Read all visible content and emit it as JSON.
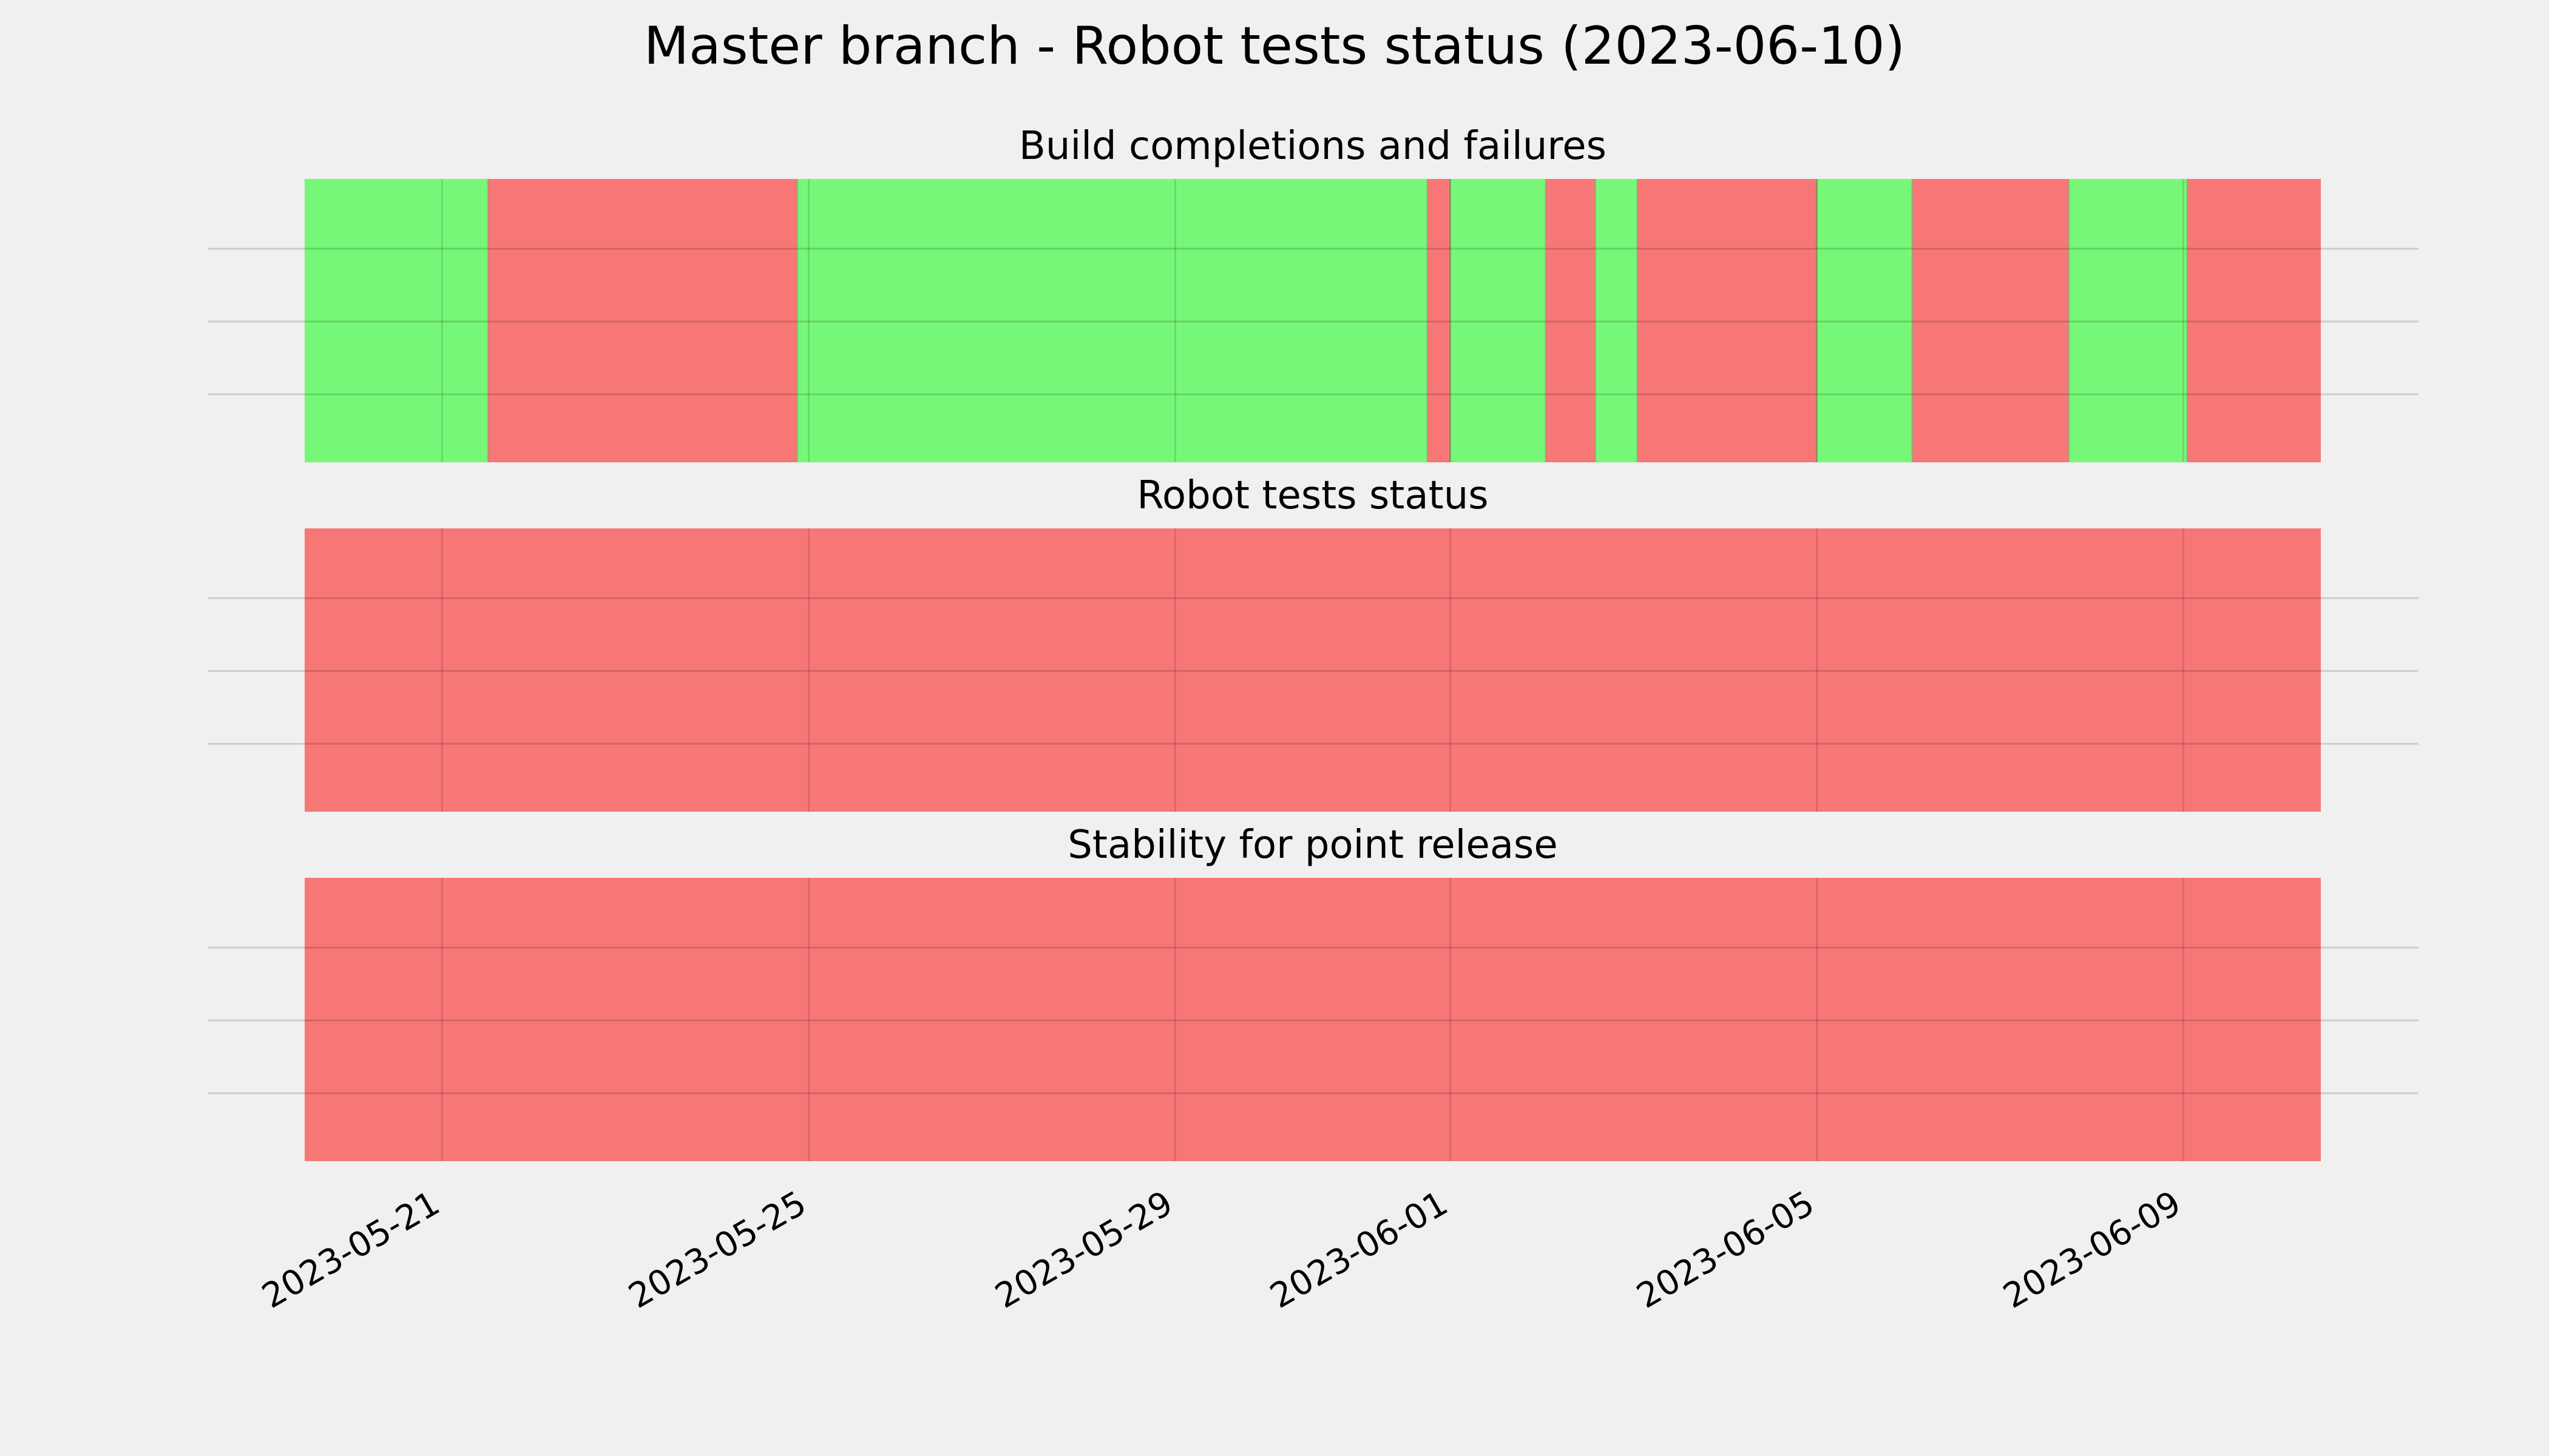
{
  "chart_data": {
    "type": "timeline",
    "title": "Master branch - Robot tests status (2023-06-10)",
    "date_range": [
      "2023-05-19 12:00",
      "2023-06-10 12:00"
    ],
    "xticks": [
      "2023-05-21",
      "2023-05-25",
      "2023-05-29",
      "2023-06-01",
      "2023-06-05",
      "2023-06-09"
    ],
    "colors": {
      "pass": "#77f777",
      "fail": "#f77777"
    },
    "panels": [
      {
        "title": "Build completions and failures",
        "segments": [
          {
            "start": "2023-05-19 12:00",
            "end": "2023-05-21 12:00",
            "status": "pass"
          },
          {
            "start": "2023-05-21 12:00",
            "end": "2023-05-24 21:00",
            "status": "fail"
          },
          {
            "start": "2023-05-24 21:00",
            "end": "2023-05-31 18:00",
            "status": "pass"
          },
          {
            "start": "2023-05-31 18:00",
            "end": "2023-06-01 00:00",
            "status": "fail"
          },
          {
            "start": "2023-06-01 00:00",
            "end": "2023-06-02 01:00",
            "status": "pass"
          },
          {
            "start": "2023-06-02 01:00",
            "end": "2023-06-02 14:00",
            "status": "fail"
          },
          {
            "start": "2023-06-02 14:00",
            "end": "2023-06-03 01:00",
            "status": "pass"
          },
          {
            "start": "2023-06-03 01:00",
            "end": "2023-06-05 00:00",
            "status": "fail"
          },
          {
            "start": "2023-06-05 00:00",
            "end": "2023-06-06 01:00",
            "status": "pass"
          },
          {
            "start": "2023-06-06 01:00",
            "end": "2023-06-07 18:00",
            "status": "fail"
          },
          {
            "start": "2023-06-07 18:00",
            "end": "2023-06-09 01:00",
            "status": "pass"
          },
          {
            "start": "2023-06-09 01:00",
            "end": "2023-06-10 12:00",
            "status": "fail"
          }
        ]
      },
      {
        "title": "Robot tests status",
        "segments": [
          {
            "start": "2023-05-19 12:00",
            "end": "2023-06-10 12:00",
            "status": "fail"
          }
        ]
      },
      {
        "title": "Stability for point release",
        "segments": [
          {
            "start": "2023-05-19 12:00",
            "end": "2023-06-10 12:00",
            "status": "fail"
          }
        ]
      }
    ],
    "grid": true,
    "legend": false
  }
}
